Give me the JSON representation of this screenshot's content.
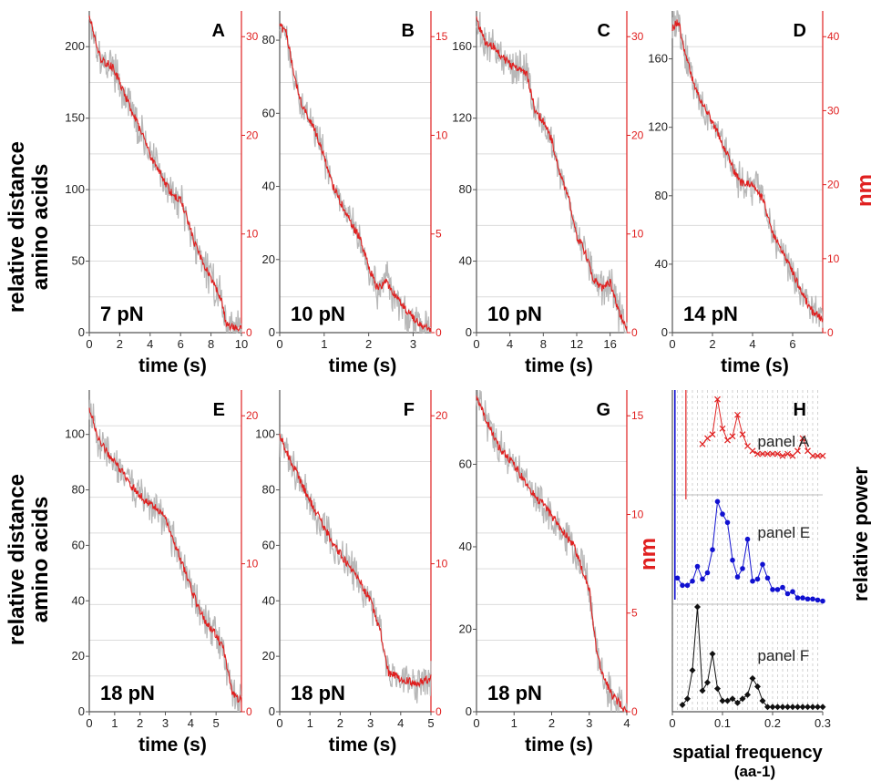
{
  "figure": {
    "left_axis_title_top": [
      "relative distance",
      "amino acids"
    ],
    "left_axis_title_bottom": [
      "relative distance",
      "amino acids"
    ],
    "right_axis_title_top": "nm",
    "right_axis_title_g": "nm",
    "right_axis_title_h": "relative power",
    "colors": {
      "trace_raw": "#b8b8b8",
      "trace_filtered": "#e02020",
      "nm_axis": "#e02020",
      "panel_e_series": "#1010d0",
      "panel_f_series": "#111111"
    }
  },
  "chart_data": [
    {
      "id": "A",
      "type": "line",
      "panel_label": "A",
      "force_label": "7 pN",
      "xlabel": "time (s)",
      "ylabel": "",
      "xlim": [
        0,
        10
      ],
      "ylim": [
        0,
        225
      ],
      "xticks": [
        "0",
        "2",
        "4",
        "6",
        "8",
        "10"
      ],
      "yticks": [
        "0",
        "50",
        "100",
        "150",
        "200"
      ],
      "secondary_axis": {
        "ticks": [
          "0",
          "10",
          "20",
          "30"
        ],
        "label": ""
      },
      "grid": "horizontal",
      "trace": {
        "x": [
          0,
          0.4,
          0.8,
          1.2,
          1.6,
          2.0,
          2.5,
          3.0,
          3.5,
          4.0,
          4.5,
          5.0,
          5.5,
          6.0,
          6.5,
          7.0,
          7.5,
          8.0,
          8.5,
          8.8,
          9.0,
          9.5,
          10.0
        ],
        "y": [
          222,
          205,
          190,
          188,
          185,
          175,
          162,
          150,
          138,
          124,
          115,
          104,
          96,
          93,
          78,
          60,
          48,
          38,
          28,
          18,
          5,
          4,
          3
        ]
      }
    },
    {
      "id": "B",
      "type": "line",
      "panel_label": "B",
      "force_label": "10 pN",
      "xlabel": "time (s)",
      "ylabel": "",
      "xlim": [
        0,
        3.4
      ],
      "ylim": [
        0,
        88
      ],
      "xticks": [
        "0",
        "1",
        "2",
        "3"
      ],
      "yticks": [
        "0",
        "20",
        "40",
        "60",
        "80"
      ],
      "secondary_axis": {
        "ticks": [
          "0",
          "5",
          "10",
          "15"
        ],
        "label": ""
      },
      "grid": "horizontal",
      "trace": {
        "x": [
          0,
          0.15,
          0.3,
          0.45,
          0.6,
          0.8,
          1.0,
          1.2,
          1.4,
          1.6,
          1.8,
          2.0,
          2.2,
          2.4,
          2.6,
          2.8,
          3.0,
          3.2,
          3.4
        ],
        "y": [
          84,
          82,
          72,
          64,
          60,
          55,
          48,
          40,
          35,
          30,
          26,
          18,
          12,
          14,
          10,
          7,
          4,
          2,
          1
        ]
      }
    },
    {
      "id": "C",
      "type": "line",
      "panel_label": "C",
      "force_label": "10 pN",
      "xlabel": "time (s)",
      "ylabel": "",
      "xlim": [
        0,
        18
      ],
      "ylim": [
        0,
        180
      ],
      "xticks": [
        "0",
        "4",
        "8",
        "12",
        "16"
      ],
      "yticks": [
        "0",
        "40",
        "80",
        "120",
        "160"
      ],
      "secondary_axis": {
        "ticks": [
          "0",
          "10",
          "20",
          "30"
        ],
        "label": ""
      },
      "grid": "horizontal",
      "trace": {
        "x": [
          0,
          1,
          2,
          3,
          4,
          5,
          6,
          7,
          8,
          9,
          10,
          11,
          12,
          13,
          14,
          15,
          16,
          17,
          18
        ],
        "y": [
          175,
          163,
          160,
          155,
          150,
          148,
          145,
          125,
          118,
          108,
          88,
          76,
          54,
          45,
          30,
          25,
          28,
          12,
          2
        ]
      }
    },
    {
      "id": "D",
      "type": "line",
      "panel_label": "D",
      "force_label": "14 pN",
      "xlabel": "time (s)",
      "ylabel": "",
      "xlim": [
        0,
        7.5
      ],
      "ylim": [
        0,
        188
      ],
      "xticks": [
        "0",
        "2",
        "4",
        "6"
      ],
      "yticks": [
        "0",
        "40",
        "80",
        "120",
        "160"
      ],
      "secondary_axis": {
        "ticks": [
          "0",
          "10",
          "20",
          "30",
          "40"
        ],
        "label": ""
      },
      "grid": "horizontal",
      "trace": {
        "x": [
          0,
          0.3,
          0.6,
          1.0,
          1.4,
          1.8,
          2.2,
          2.6,
          3.0,
          3.4,
          3.8,
          4.2,
          4.6,
          5.0,
          5.4,
          5.8,
          6.2,
          6.6,
          7.0,
          7.5
        ],
        "y": [
          178,
          182,
          165,
          148,
          135,
          128,
          118,
          108,
          96,
          88,
          87,
          85,
          75,
          58,
          50,
          40,
          30,
          20,
          12,
          8
        ]
      }
    },
    {
      "id": "E",
      "type": "line",
      "panel_label": "E",
      "force_label": "18 pN",
      "xlabel": "time (s)",
      "ylabel": "",
      "xlim": [
        0,
        6
      ],
      "ylim": [
        0,
        116
      ],
      "xticks": [
        "0",
        "1",
        "2",
        "3",
        "4",
        "5"
      ],
      "yticks": [
        "0",
        "20",
        "40",
        "60",
        "80",
        "100"
      ],
      "secondary_axis": {
        "ticks": [
          "0",
          "10",
          "20"
        ],
        "label": ""
      },
      "grid": "horizontal",
      "trace": {
        "x": [
          0,
          0.3,
          0.6,
          1.0,
          1.4,
          1.8,
          2.2,
          2.6,
          3.0,
          3.4,
          3.8,
          4.2,
          4.6,
          5.0,
          5.3,
          5.6,
          5.8,
          6.0
        ],
        "y": [
          110,
          100,
          95,
          90,
          85,
          80,
          76,
          74,
          70,
          60,
          50,
          40,
          32,
          28,
          22,
          8,
          5,
          4
        ]
      }
    },
    {
      "id": "F",
      "type": "line",
      "panel_label": "F",
      "force_label": "18 pN",
      "xlabel": "time (s)",
      "ylabel": "",
      "xlim": [
        0,
        5
      ],
      "ylim": [
        0,
        116
      ],
      "xticks": [
        "0",
        "1",
        "2",
        "3",
        "4",
        "5"
      ],
      "yticks": [
        "0",
        "20",
        "40",
        "60",
        "80",
        "100"
      ],
      "secondary_axis": {
        "ticks": [
          "0",
          "10",
          "20"
        ],
        "label": ""
      },
      "grid": "horizontal",
      "trace": {
        "x": [
          0,
          0.3,
          0.6,
          1.0,
          1.4,
          1.8,
          2.2,
          2.6,
          3.0,
          3.3,
          3.6,
          4.0,
          4.5,
          5.0
        ],
        "y": [
          100,
          92,
          85,
          76,
          68,
          60,
          54,
          48,
          40,
          30,
          14,
          12,
          10,
          12
        ]
      }
    },
    {
      "id": "G",
      "type": "line",
      "panel_label": "G",
      "force_label": "18 pN",
      "xlabel": "time (s)",
      "ylabel": "",
      "xlim": [
        0,
        4
      ],
      "ylim": [
        0,
        78
      ],
      "xticks": [
        "0",
        "1",
        "2",
        "3",
        "4"
      ],
      "yticks": [
        "0",
        "20",
        "40",
        "60"
      ],
      "secondary_axis": {
        "ticks": [
          "0",
          "5",
          "10",
          "15"
        ],
        "label": ""
      },
      "grid": "horizontal",
      "trace": {
        "x": [
          0,
          0.2,
          0.4,
          0.6,
          1.0,
          1.4,
          1.8,
          2.2,
          2.6,
          3.0,
          3.2,
          3.4,
          3.6,
          3.8,
          4.0
        ],
        "y": [
          76,
          72,
          68,
          64,
          60,
          54,
          50,
          45,
          40,
          30,
          14,
          8,
          4,
          2,
          0
        ]
      }
    },
    {
      "id": "H",
      "type": "line",
      "panel_label": "H",
      "xlabel": "spatial frequency",
      "xlabel_line2": "(aa-1)",
      "ylabel": "",
      "xlim": [
        0,
        0.3
      ],
      "xticks": [
        "0",
        "0.1",
        "0.2",
        "0.3"
      ],
      "grid": "both",
      "series": [
        {
          "name": "panel A",
          "color": "#e02020",
          "marker": "x",
          "x": [
            0.06,
            0.07,
            0.08,
            0.09,
            0.1,
            0.11,
            0.12,
            0.13,
            0.14,
            0.15,
            0.16,
            0.17,
            0.18,
            0.19,
            0.2,
            0.21,
            0.22,
            0.23,
            0.24,
            0.25,
            0.26,
            0.27,
            0.28,
            0.29,
            0.3
          ],
          "y": [
            0.52,
            0.58,
            0.62,
            0.98,
            0.68,
            0.56,
            0.6,
            0.82,
            0.62,
            0.5,
            0.45,
            0.42,
            0.42,
            0.42,
            0.42,
            0.42,
            0.4,
            0.42,
            0.4,
            0.45,
            0.58,
            0.45,
            0.4,
            0.4,
            0.4
          ]
        },
        {
          "name": "panel E",
          "color": "#1010d0",
          "marker": "dot",
          "x": [
            0.01,
            0.02,
            0.03,
            0.04,
            0.05,
            0.06,
            0.07,
            0.08,
            0.09,
            0.1,
            0.11,
            0.12,
            0.13,
            0.14,
            0.15,
            0.16,
            0.17,
            0.18,
            0.19,
            0.2,
            0.21,
            0.22,
            0.23,
            0.24,
            0.25,
            0.26,
            0.27,
            0.28,
            0.29,
            0.3
          ],
          "y": [
            0.25,
            0.18,
            0.18,
            0.22,
            0.36,
            0.24,
            0.3,
            0.52,
            0.98,
            0.86,
            0.78,
            0.42,
            0.26,
            0.34,
            0.62,
            0.22,
            0.24,
            0.38,
            0.25,
            0.14,
            0.14,
            0.16,
            0.1,
            0.12,
            0.06,
            0.06,
            0.05,
            0.05,
            0.04,
            0.03
          ]
        },
        {
          "name": "panel F",
          "color": "#111111",
          "marker": "diamond",
          "x": [
            0.02,
            0.03,
            0.04,
            0.05,
            0.06,
            0.07,
            0.08,
            0.09,
            0.1,
            0.11,
            0.12,
            0.13,
            0.14,
            0.15,
            0.16,
            0.17,
            0.18,
            0.19,
            0.2,
            0.21,
            0.22,
            0.23,
            0.24,
            0.25,
            0.26,
            0.27,
            0.28,
            0.29,
            0.3
          ],
          "y": [
            0.04,
            0.1,
            0.38,
            1.0,
            0.18,
            0.26,
            0.54,
            0.2,
            0.08,
            0.08,
            0.1,
            0.06,
            0.1,
            0.14,
            0.3,
            0.22,
            0.08,
            0.02,
            0.02,
            0.02,
            0.02,
            0.02,
            0.02,
            0.02,
            0.02,
            0.02,
            0.02,
            0.02,
            0.02
          ]
        }
      ]
    }
  ]
}
